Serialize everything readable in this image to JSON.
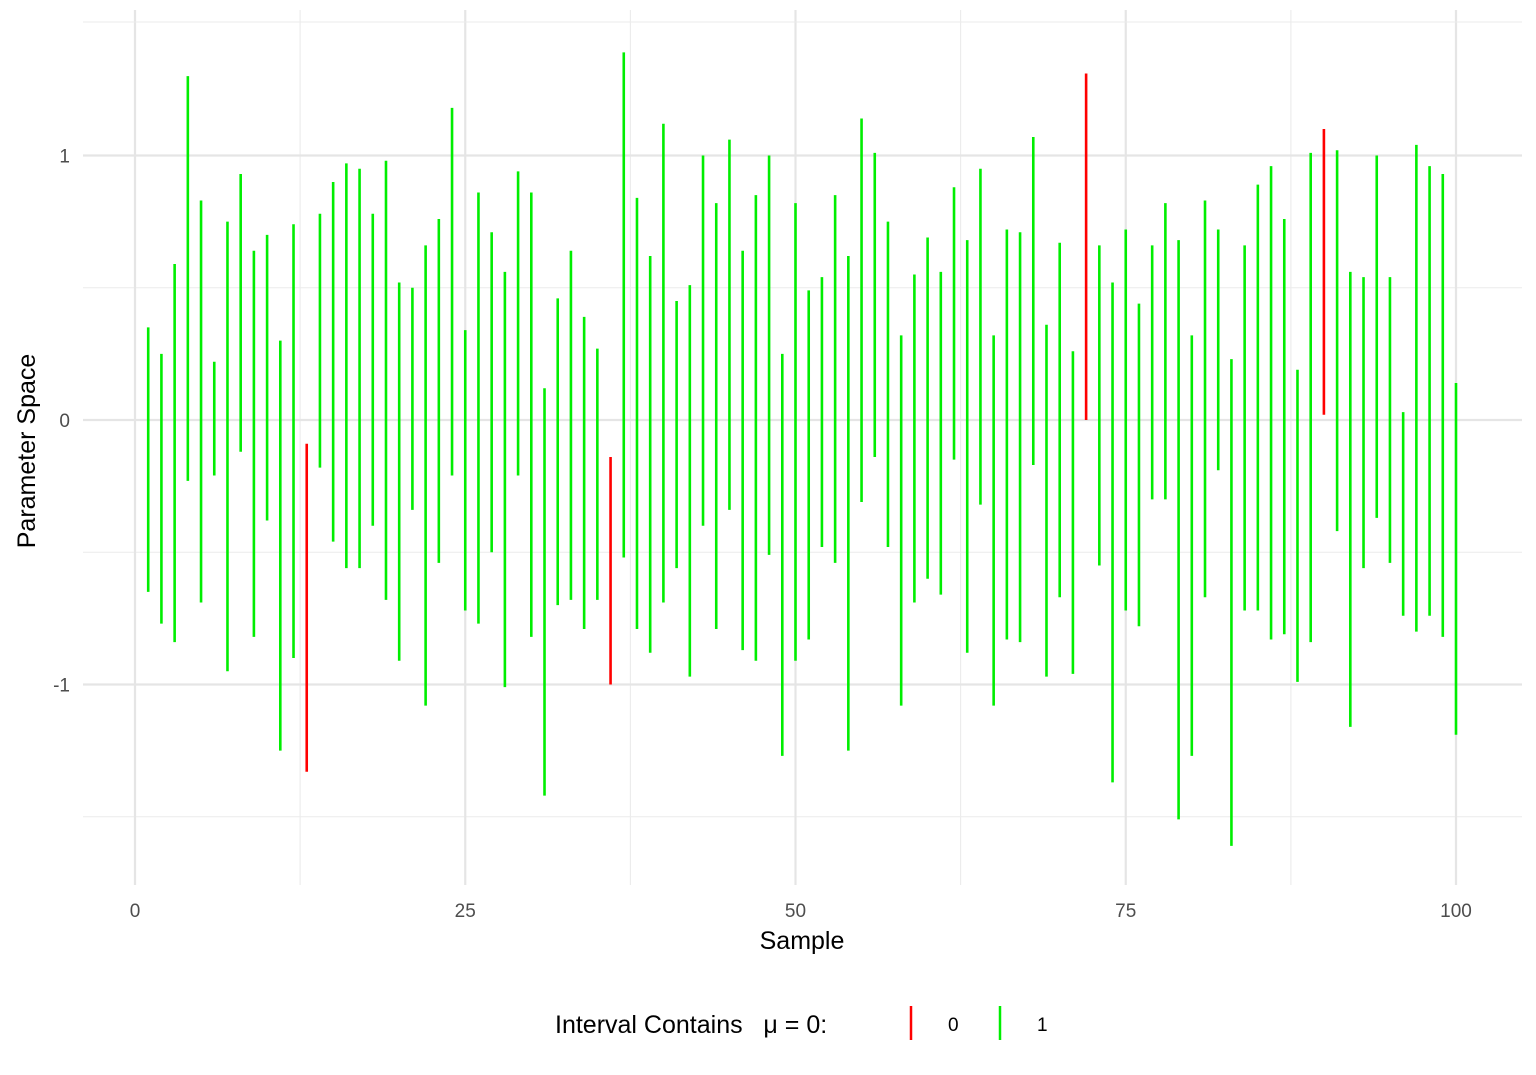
{
  "chart_data": {
    "type": "interval",
    "xlabel": "Sample",
    "ylabel": "Parameter Space",
    "xlim": [
      0,
      100
    ],
    "ylim": [
      -1.65,
      1.5
    ],
    "x_ticks": [
      0,
      25,
      50,
      75,
      100
    ],
    "x_tick_labels": [
      "0",
      "25",
      "50",
      "75",
      "100"
    ],
    "y_ticks": [
      -1,
      0,
      1
    ],
    "y_tick_labels": [
      "-1",
      "0",
      "1"
    ],
    "grid": true,
    "legend": {
      "title": "Interval Contains   μ = 0:",
      "position": "bottom",
      "entries": [
        {
          "label": "0",
          "color": "#ff0000"
        },
        {
          "label": "1",
          "color": "#00ee00"
        }
      ]
    },
    "colors": {
      "0": "#ff0000",
      "1": "#00ee00"
    },
    "x": [
      1,
      2,
      3,
      4,
      5,
      6,
      7,
      8,
      9,
      10,
      11,
      12,
      13,
      14,
      15,
      16,
      17,
      18,
      19,
      20,
      21,
      22,
      23,
      24,
      25,
      26,
      27,
      28,
      29,
      30,
      31,
      32,
      33,
      34,
      35,
      36,
      37,
      38,
      39,
      40,
      41,
      42,
      43,
      44,
      45,
      46,
      47,
      48,
      49,
      50,
      51,
      52,
      53,
      54,
      55,
      56,
      57,
      58,
      59,
      60,
      61,
      62,
      63,
      64,
      65,
      66,
      67,
      68,
      69,
      70,
      71,
      72,
      73,
      74,
      75,
      76,
      77,
      78,
      79,
      80,
      81,
      82,
      83,
      84,
      85,
      86,
      87,
      88,
      89,
      90,
      91,
      92,
      93,
      94,
      95,
      96,
      97,
      98,
      99,
      100
    ],
    "lower": [
      -0.65,
      -0.77,
      -0.84,
      -0.23,
      -0.69,
      -0.21,
      -0.95,
      -0.12,
      -0.82,
      -0.38,
      -1.25,
      -0.9,
      -1.33,
      -0.18,
      -0.46,
      -0.56,
      -0.56,
      -0.4,
      -0.68,
      -0.91,
      -0.34,
      -1.08,
      -0.54,
      -0.21,
      -0.72,
      -0.77,
      -0.5,
      -1.01,
      -0.21,
      -0.82,
      -1.42,
      -0.7,
      -0.68,
      -0.79,
      -0.68,
      -1.0,
      -0.52,
      -0.79,
      -0.88,
      -0.69,
      -0.56,
      -0.97,
      -0.4,
      -0.79,
      -0.34,
      -0.87,
      -0.91,
      -0.51,
      -1.27,
      -0.91,
      -0.83,
      -0.48,
      -0.54,
      -1.25,
      -0.31,
      -0.14,
      -0.48,
      -1.08,
      -0.69,
      -0.6,
      -0.66,
      -0.15,
      -0.88,
      -0.32,
      -1.08,
      -0.83,
      -0.84,
      -0.17,
      -0.97,
      -0.67,
      -0.96,
      0.0,
      -0.55,
      -1.37,
      -0.72,
      -0.78,
      -0.3,
      -0.3,
      -1.51,
      -1.27,
      -0.67,
      -0.19,
      -1.61,
      -0.72,
      -0.72,
      -0.83,
      -0.81,
      -0.99,
      -0.84,
      0.02,
      -0.42,
      -1.16,
      -0.56,
      -0.37,
      -0.54,
      -0.74,
      -0.8,
      -0.74,
      -0.82,
      -1.19
    ],
    "upper": [
      0.35,
      0.25,
      0.59,
      1.3,
      0.83,
      0.22,
      0.75,
      0.93,
      0.64,
      0.7,
      0.3,
      0.74,
      -0.09,
      0.78,
      0.9,
      0.97,
      0.95,
      0.78,
      0.98,
      0.52,
      0.5,
      0.66,
      0.76,
      1.18,
      0.34,
      0.86,
      0.71,
      0.56,
      0.94,
      0.86,
      0.12,
      0.46,
      0.64,
      0.39,
      0.27,
      -0.14,
      1.39,
      0.84,
      0.62,
      1.12,
      0.45,
      0.51,
      1.0,
      0.82,
      1.06,
      0.64,
      0.85,
      1.0,
      0.25,
      0.82,
      0.49,
      0.54,
      0.85,
      0.62,
      1.14,
      1.01,
      0.75,
      0.32,
      0.55,
      0.69,
      0.56,
      0.88,
      0.68,
      0.95,
      0.32,
      0.72,
      0.71,
      1.07,
      0.36,
      0.67,
      0.26,
      1.31,
      0.66,
      0.52,
      0.72,
      0.44,
      0.66,
      0.82,
      0.68,
      0.32,
      0.83,
      0.72,
      0.23,
      0.66,
      0.89,
      0.96,
      0.76,
      0.19,
      1.01,
      1.1,
      1.02,
      0.56,
      0.54,
      1.0,
      0.54,
      0.03,
      1.04,
      0.96,
      0.93,
      0.14
    ],
    "contains": [
      1,
      1,
      1,
      1,
      1,
      1,
      1,
      1,
      1,
      1,
      1,
      1,
      0,
      1,
      1,
      1,
      1,
      1,
      1,
      1,
      1,
      1,
      1,
      1,
      1,
      1,
      1,
      1,
      1,
      1,
      1,
      1,
      1,
      1,
      1,
      0,
      1,
      1,
      1,
      1,
      1,
      1,
      1,
      1,
      1,
      1,
      1,
      1,
      1,
      1,
      1,
      1,
      1,
      1,
      1,
      1,
      1,
      1,
      1,
      1,
      1,
      1,
      1,
      1,
      1,
      1,
      1,
      1,
      1,
      1,
      1,
      0,
      1,
      1,
      1,
      1,
      1,
      1,
      1,
      1,
      1,
      1,
      1,
      1,
      1,
      1,
      1,
      1,
      1,
      0,
      1,
      1,
      1,
      1,
      1,
      1,
      1,
      1,
      1,
      1
    ]
  }
}
